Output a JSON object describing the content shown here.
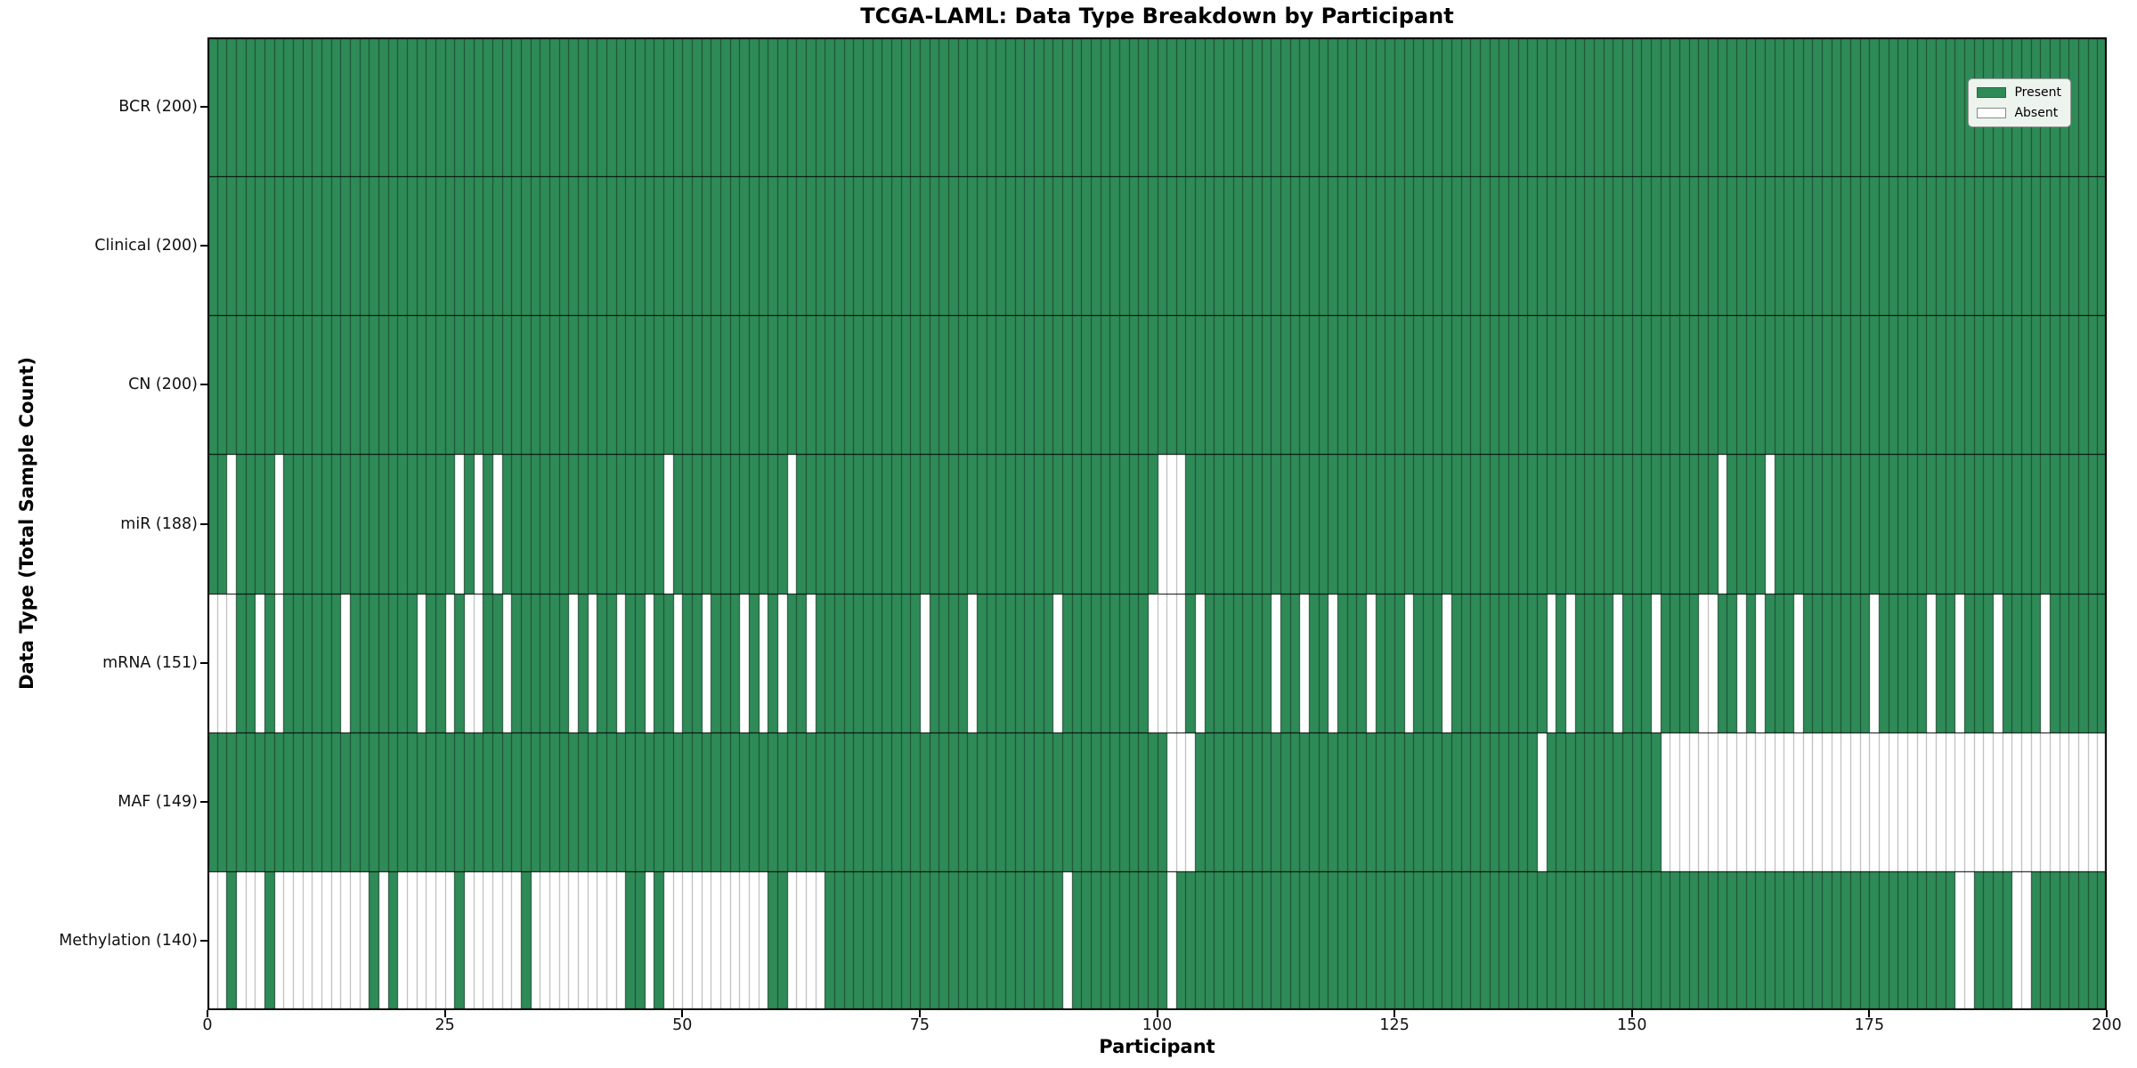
{
  "title": "TCGA-LAML: Data Type Breakdown by Participant",
  "legend": {
    "entries": [
      {
        "label": "Present",
        "color": "#2e8b57"
      },
      {
        "label": "Absent",
        "color": "#ffffff"
      }
    ]
  },
  "chart_data": {
    "type": "heatmap",
    "title": "TCGA-LAML: Data Type Breakdown by Participant",
    "xlabel": "Participant",
    "ylabel": "Data Type (Total Sample Count)",
    "x_ticks": [
      0,
      25,
      50,
      75,
      100,
      125,
      150,
      175,
      200
    ],
    "x_range": [
      0,
      200
    ],
    "n_participants": 200,
    "grid": false,
    "legend_position": "upper right",
    "colors": {
      "present": "#2e8b57",
      "absent": "#ffffff",
      "present_edge": "#1c4730",
      "absent_edge": "#b0b0b0",
      "row_separator": "#000000",
      "border": "#000000"
    },
    "rows": [
      {
        "label": "BCR (200)",
        "name": "BCR",
        "present_count": 200,
        "absent_cols": []
      },
      {
        "label": "Clinical (200)",
        "name": "Clinical",
        "present_count": 200,
        "absent_cols": []
      },
      {
        "label": "CN (200)",
        "name": "CN",
        "present_count": 200,
        "absent_cols": []
      },
      {
        "label": "miR (188)",
        "name": "miR",
        "present_count": 188,
        "absent_cols": [
          2,
          7,
          26,
          28,
          30,
          48,
          61,
          100,
          101,
          102,
          159,
          164
        ]
      },
      {
        "label": "mRNA (151)",
        "name": "mRNA",
        "present_count": 151,
        "absent_cols": [
          0,
          1,
          2,
          5,
          7,
          14,
          22,
          25,
          27,
          28,
          31,
          38,
          40,
          43,
          46,
          49,
          52,
          56,
          58,
          60,
          63,
          75,
          80,
          89,
          99,
          100,
          101,
          102,
          104,
          112,
          115,
          118,
          122,
          126,
          130,
          141,
          143,
          148,
          152,
          157,
          158,
          161,
          163,
          167,
          175,
          181,
          184,
          188,
          193
        ]
      },
      {
        "label": "MAF (149)",
        "name": "MAF",
        "present_count": 149,
        "absent_cols": [
          101,
          102,
          103,
          140,
          153,
          154,
          155,
          156,
          157,
          158,
          159,
          160,
          161,
          162,
          163,
          164,
          165,
          166,
          167,
          168,
          169,
          170,
          171,
          172,
          173,
          174,
          175,
          176,
          177,
          178,
          179,
          180,
          181,
          182,
          183,
          184,
          185,
          186,
          187,
          188,
          189,
          190,
          191,
          192,
          193,
          194,
          195,
          196,
          197,
          198,
          199
        ]
      },
      {
        "label": "Methylation (140)",
        "name": "Methylation",
        "present_count": 140,
        "absent_cols": [
          0,
          1,
          3,
          4,
          5,
          7,
          8,
          9,
          10,
          11,
          12,
          13,
          14,
          15,
          16,
          18,
          20,
          21,
          22,
          23,
          24,
          25,
          27,
          28,
          29,
          30,
          31,
          32,
          34,
          35,
          36,
          37,
          38,
          39,
          40,
          41,
          42,
          43,
          46,
          48,
          49,
          50,
          51,
          52,
          53,
          54,
          55,
          56,
          57,
          58,
          61,
          62,
          63,
          64,
          90,
          101,
          184,
          185,
          190,
          191
        ]
      }
    ]
  }
}
